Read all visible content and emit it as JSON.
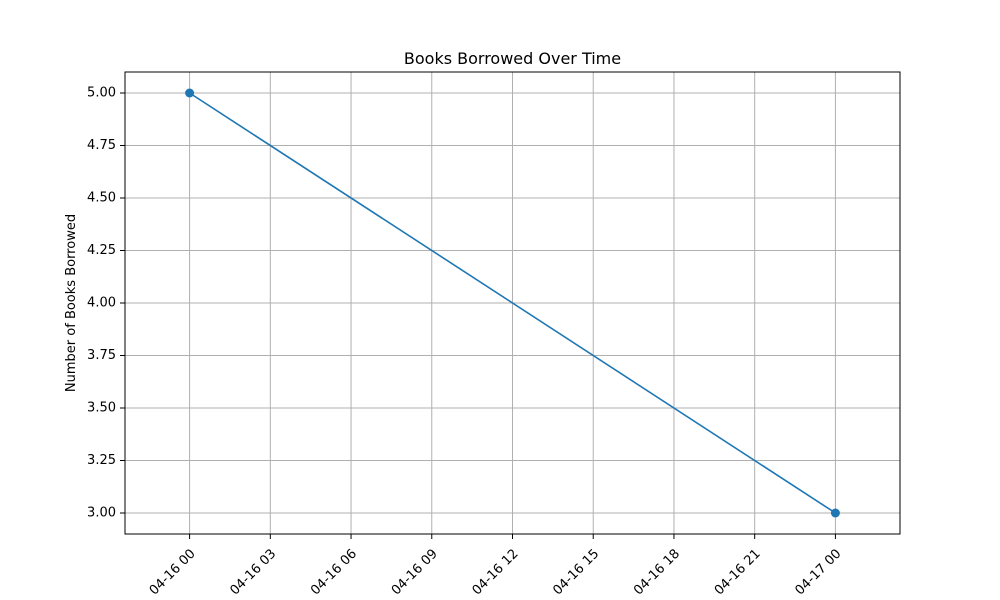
{
  "chart_data": {
    "type": "line",
    "title": "Books Borrowed Over Time",
    "xlabel": "",
    "ylabel": "Number of Books Borrowed",
    "x_ticks": [
      "04-16 00",
      "04-16 03",
      "04-16 06",
      "04-16 09",
      "04-16 12",
      "04-16 15",
      "04-16 18",
      "04-16 21",
      "04-17 00"
    ],
    "y_ticks": [
      "3.00",
      "3.25",
      "3.50",
      "3.75",
      "4.00",
      "4.25",
      "4.50",
      "4.75",
      "5.00"
    ],
    "xlim": [
      "04-15 21:36",
      "04-17 02:24"
    ],
    "ylim": [
      2.9,
      5.1
    ],
    "grid": true,
    "series": [
      {
        "x": [
          "04-16 00:00",
          "04-17 00:00"
        ],
        "values": [
          5,
          3
        ],
        "color": "#1f77b4",
        "marker": "circle"
      }
    ]
  }
}
